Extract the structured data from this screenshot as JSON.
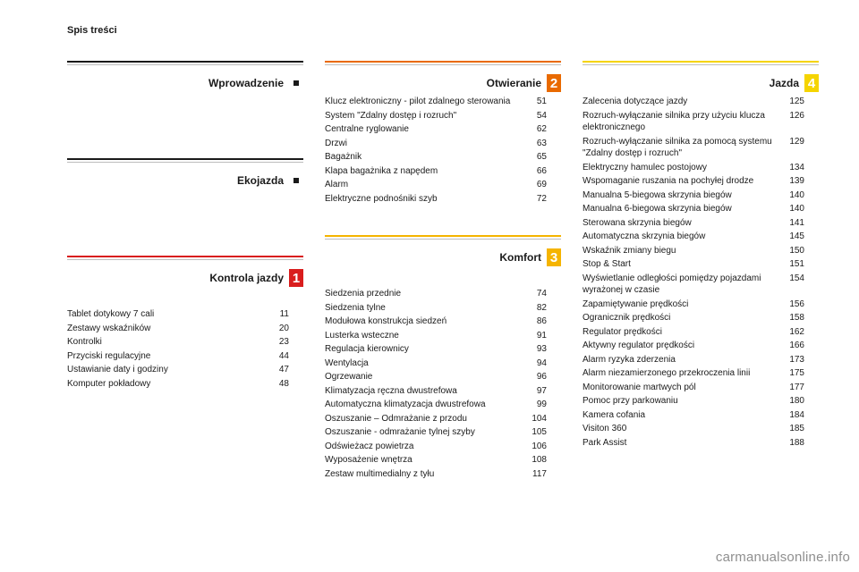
{
  "toc_label": "Spis treści",
  "watermark": "carmanualsonline.info",
  "colors": {
    "gray": "#1a1a1a",
    "chapter1": "#d91d1d",
    "chapter2": "#e96a00",
    "chapter3": "#f5b400",
    "chapter4": "#f5d400"
  },
  "left": {
    "sections": [
      {
        "title": "Wprowadzenie",
        "chip": "dot"
      },
      {
        "title": "Ekojazda",
        "chip": "dot"
      },
      {
        "title": "Kontrola jazdy",
        "chip": "1",
        "chip_color": "#d91d1d",
        "items": [
          {
            "label": "Tablet dotykowy 7 cali",
            "page": "11"
          },
          {
            "label": "Zestawy wskaźników",
            "page": "20"
          },
          {
            "label": "Kontrolki",
            "page": "23"
          },
          {
            "label": "Przyciski regulacyjne",
            "page": "44"
          },
          {
            "label": "Ustawianie daty i godziny",
            "page": "47"
          },
          {
            "label": "Komputer pokładowy",
            "page": "48"
          }
        ]
      }
    ]
  },
  "middle": {
    "sections": [
      {
        "title": "Otwieranie",
        "chip": "2",
        "chip_color": "#e96a00",
        "items": [
          {
            "label": "Klucz elektroniczny - pilot zdalnego sterowania",
            "page": "51"
          },
          {
            "label": "System \"Zdalny dostęp i rozruch\"",
            "page": "54"
          },
          {
            "label": "Centralne ryglowanie",
            "page": "62"
          },
          {
            "label": "Drzwi",
            "page": "63"
          },
          {
            "label": "Bagażnik",
            "page": "65"
          },
          {
            "label": "Klapa bagażnika z napędem",
            "page": "66"
          },
          {
            "label": "Alarm",
            "page": "69"
          },
          {
            "label": "Elektryczne podnośniki szyb",
            "page": "72"
          }
        ]
      },
      {
        "title": "Komfort",
        "chip": "3",
        "chip_color": "#f5b400",
        "items": [
          {
            "label": "Siedzenia przednie",
            "page": "74"
          },
          {
            "label": "Siedzenia tylne",
            "page": "82"
          },
          {
            "label": "Modułowa konstrukcja siedzeń",
            "page": "86"
          },
          {
            "label": "Lusterka wsteczne",
            "page": "91"
          },
          {
            "label": "Regulacja kierownicy",
            "page": "93"
          },
          {
            "label": "Wentylacja",
            "page": "94"
          },
          {
            "label": "Ogrzewanie",
            "page": "96"
          },
          {
            "label": "Klimatyzacja ręczna dwustrefowa",
            "page": "97"
          },
          {
            "label": "Automatyczna klimatyzacja dwustrefowa",
            "page": "99"
          },
          {
            "label": "Oszuszanie – Odmrażanie z przodu",
            "page": "104"
          },
          {
            "label": "Oszuszanie - odmrażanie tylnej szyby",
            "page": "105"
          },
          {
            "label": "Odświeżacz powietrza",
            "page": "106"
          },
          {
            "label": "Wyposażenie wnętrza",
            "page": "108"
          },
          {
            "label": "Zestaw multimedialny z tyłu",
            "page": "117"
          }
        ]
      }
    ]
  },
  "right": {
    "sections": [
      {
        "title": "Jazda",
        "chip": "4",
        "chip_color": "#f5d400",
        "items": [
          {
            "label": "Zalecenia dotyczące jazdy",
            "page": "125"
          },
          {
            "label": "Rozruch-wyłączanie silnika przy użyciu klucza elektronicznego",
            "page": "126"
          },
          {
            "label": "Rozruch-wyłączanie silnika za pomocą systemu \"Zdalny dostęp i rozruch\"",
            "page": "129"
          },
          {
            "label": "Elektryczny hamulec postojowy",
            "page": "134"
          },
          {
            "label": "Wspomaganie ruszania na pochyłej drodze",
            "page": "139"
          },
          {
            "label": "Manualna 5-biegowa skrzynia biegów",
            "page": "140"
          },
          {
            "label": "Manualna 6-biegowa skrzynia biegów",
            "page": "140"
          },
          {
            "label": "Sterowana skrzynia biegów",
            "page": "141"
          },
          {
            "label": "Automatyczna skrzynia biegów",
            "page": "145"
          },
          {
            "label": "Wskaźnik zmiany biegu",
            "page": "150"
          },
          {
            "label": "Stop & Start",
            "page": "151"
          },
          {
            "label": "Wyświetlanie odległości pomiędzy pojazdami wyrażonej w czasie",
            "page": "154"
          },
          {
            "label": "Zapamiętywanie prędkości",
            "page": "156"
          },
          {
            "label": "Ogranicznik prędkości",
            "page": "158"
          },
          {
            "label": "Regulator prędkości",
            "page": "162"
          },
          {
            "label": "Aktywny regulator prędkości",
            "page": "166"
          },
          {
            "label": "Alarm ryzyka zderzenia",
            "page": "173"
          },
          {
            "label": "Alarm niezamierzonego przekroczenia linii",
            "page": "175"
          },
          {
            "label": "Monitorowanie martwych pól",
            "page": "177"
          },
          {
            "label": "Pomoc przy parkowaniu",
            "page": "180"
          },
          {
            "label": "Kamera cofania",
            "page": "184"
          },
          {
            "label": "Visiton 360",
            "page": "185"
          },
          {
            "label": "Park Assist",
            "page": "188"
          }
        ]
      }
    ]
  }
}
